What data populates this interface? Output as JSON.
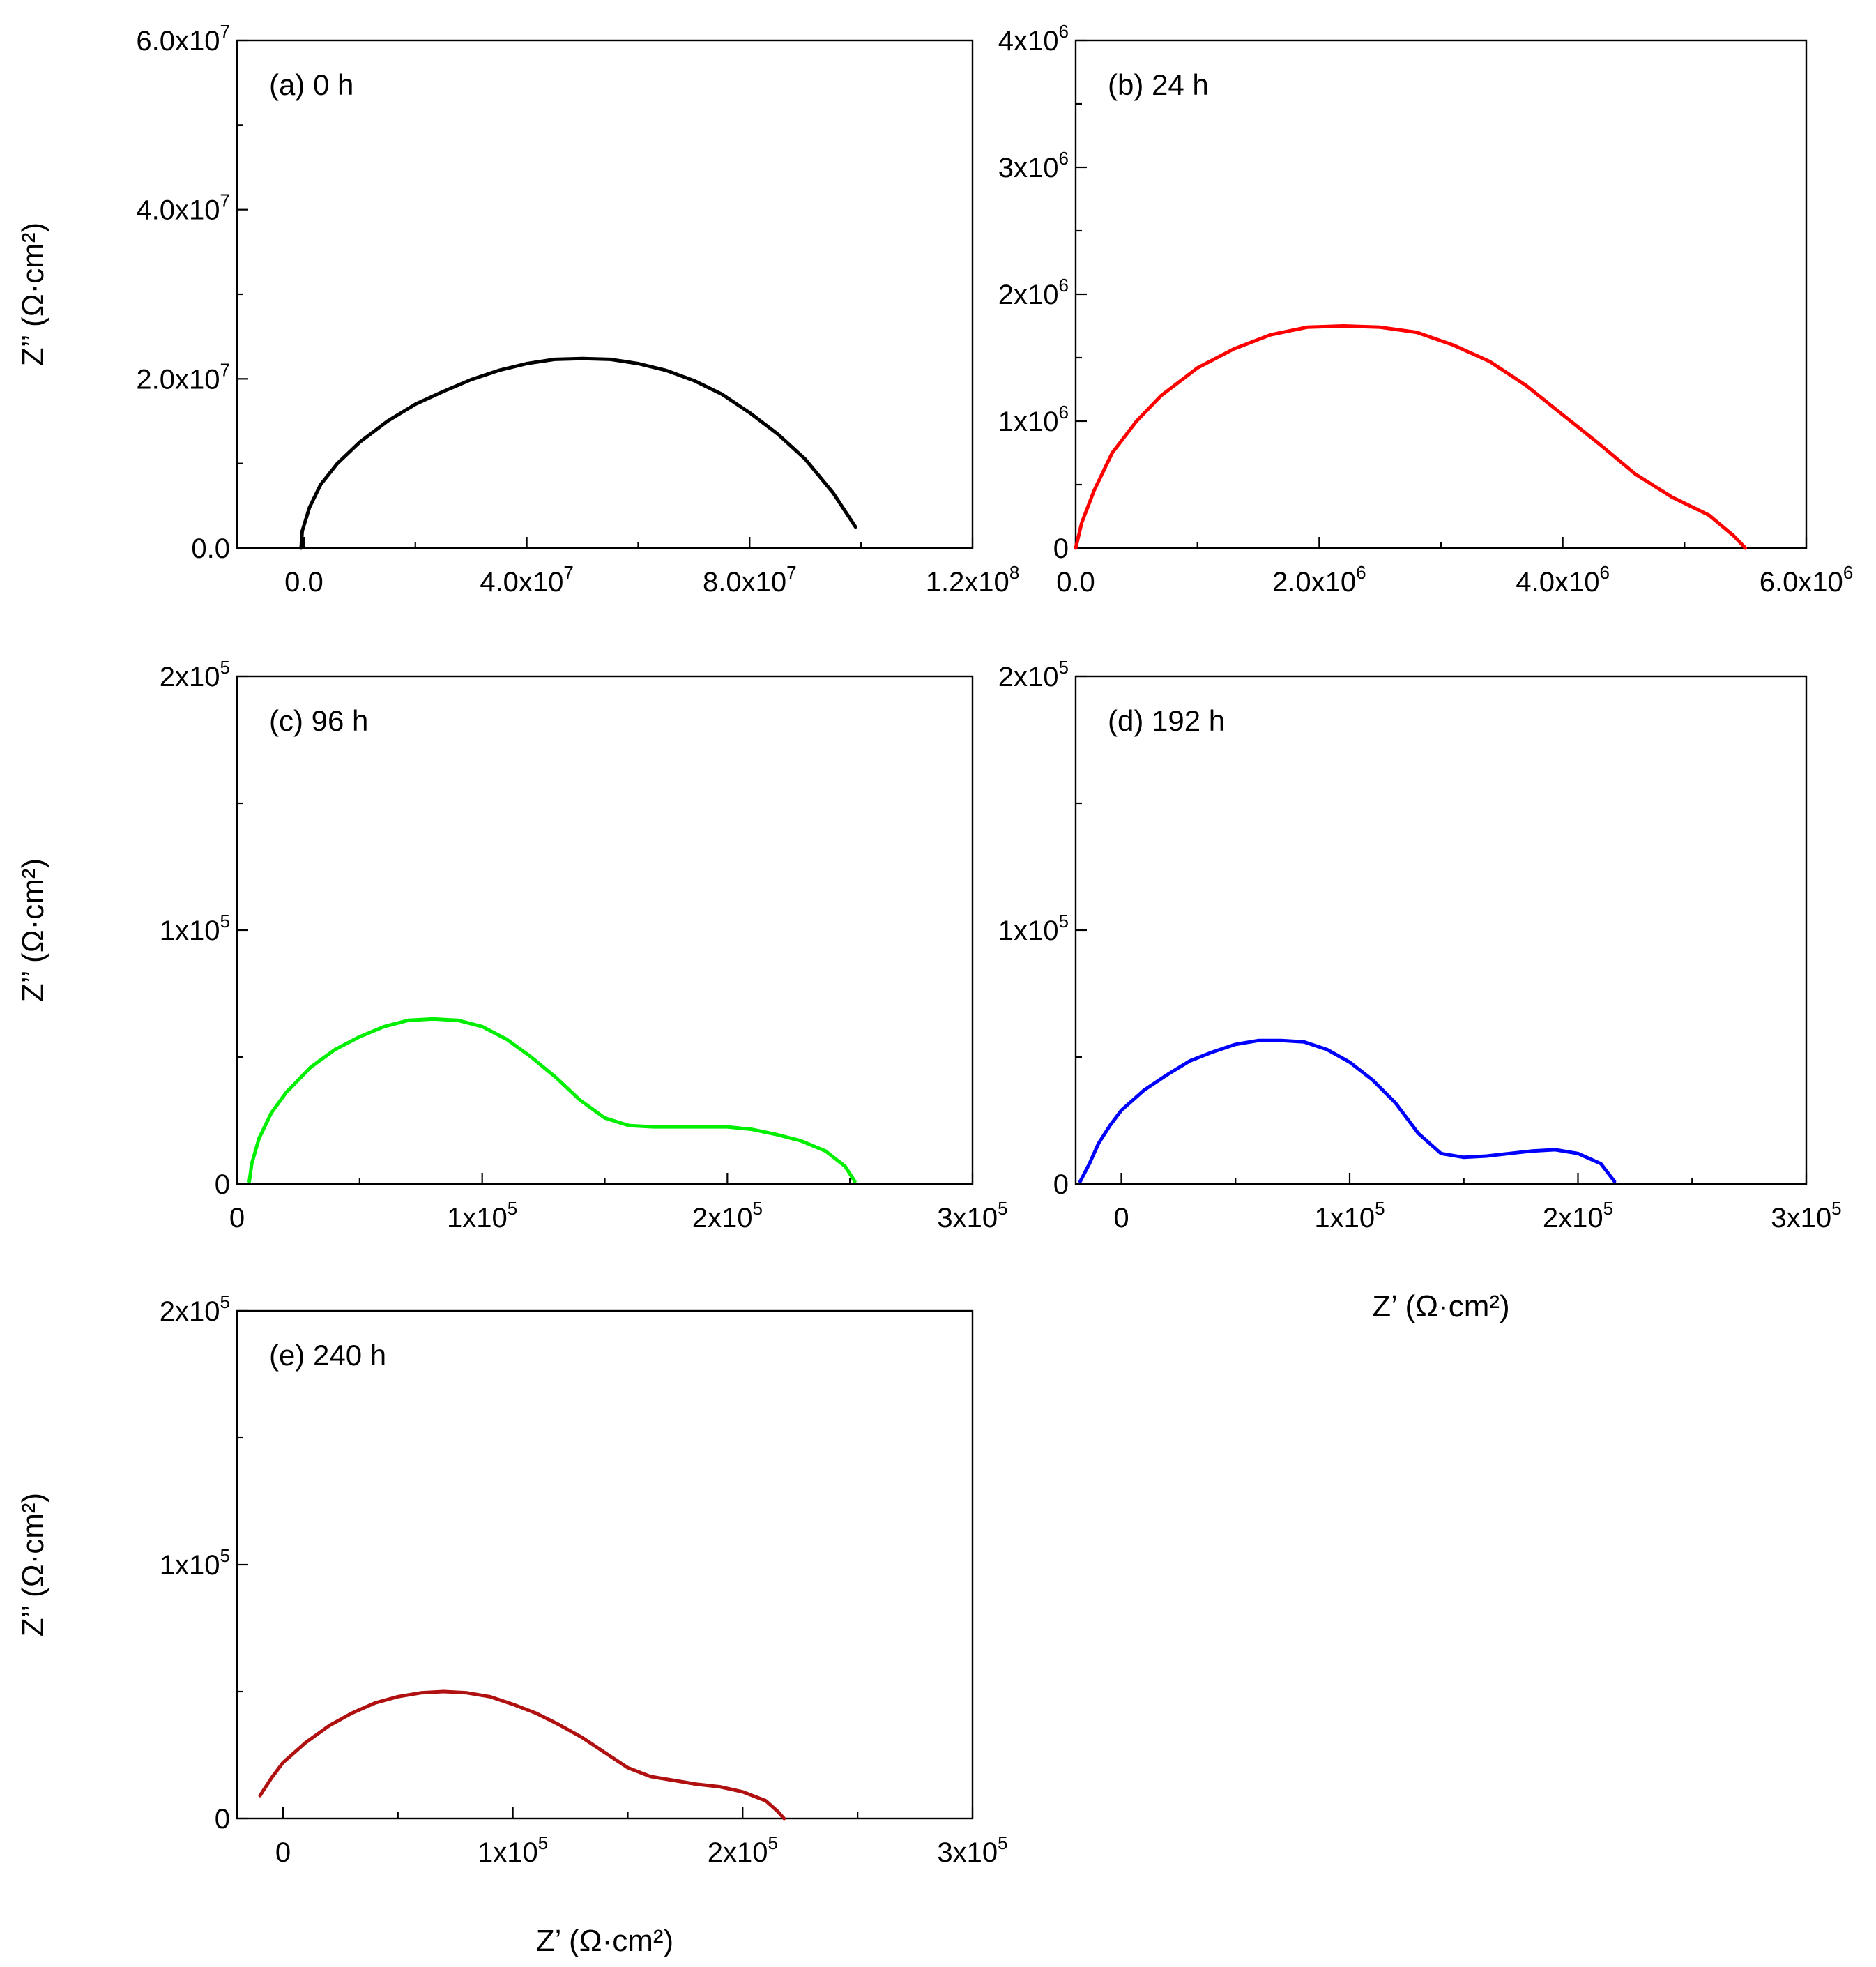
{
  "chart_data": [
    {
      "id": "a",
      "type": "line",
      "title": "(a) 0 h",
      "xlabel": "",
      "ylabel": "Z’’ (Ω·cm²)",
      "xlim": [
        -12000000.0,
        120000000.0
      ],
      "ylim": [
        0,
        60000000.0
      ],
      "x_ticks": [
        {
          "v": 0,
          "m": "0.0",
          "e": ""
        },
        {
          "v": 40000000.0,
          "m": "4.0x10",
          "e": "7"
        },
        {
          "v": 80000000.0,
          "m": "8.0x10",
          "e": "7"
        },
        {
          "v": 120000000.0,
          "m": "1.2x10",
          "e": "8"
        }
      ],
      "y_ticks": [
        {
          "v": 0,
          "m": "0.0",
          "e": ""
        },
        {
          "v": 20000000.0,
          "m": "2.0x10",
          "e": "7"
        },
        {
          "v": 40000000.0,
          "m": "4.0x10",
          "e": "7"
        },
        {
          "v": 60000000.0,
          "m": "6.0x10",
          "e": "7"
        }
      ],
      "color": "#000000",
      "series": [
        {
          "name": "0 h",
          "x": [
            -500000.0,
            -300000.0,
            1000000.0,
            3000000.0,
            6000000.0,
            10000000.0,
            15000000.0,
            20000000.0,
            25000000.0,
            30000000.0,
            35000000.0,
            40000000.0,
            45000000.0,
            50000000.0,
            55000000.0,
            60000000.0,
            65000000.0,
            70000000.0,
            75000000.0,
            80000000.0,
            85000000.0,
            90000000.0,
            95000000.0,
            99000000.0
          ],
          "y": [
            0,
            2000000.0,
            4800000.0,
            7500000.0,
            10000000.0,
            12500000.0,
            15000000.0,
            17000000.0,
            18500000.0,
            19900000.0,
            21000000.0,
            21800000.0,
            22300000.0,
            22400000.0,
            22300000.0,
            21800000.0,
            21000000.0,
            19800000.0,
            18200000.0,
            16000000.0,
            13500000.0,
            10500000.0,
            6500000.0,
            2500000.0
          ]
        }
      ]
    },
    {
      "id": "b",
      "type": "line",
      "title": "(b) 24 h",
      "xlabel": "",
      "ylabel": "",
      "xlim": [
        0,
        6000000.0
      ],
      "ylim": [
        0,
        4000000.0
      ],
      "x_ticks": [
        {
          "v": 0,
          "m": "0.0",
          "e": ""
        },
        {
          "v": 2000000.0,
          "m": "2.0x10",
          "e": "6"
        },
        {
          "v": 4000000.0,
          "m": "4.0x10",
          "e": "6"
        },
        {
          "v": 6000000.0,
          "m": "6.0x10",
          "e": "6"
        }
      ],
      "y_ticks": [
        {
          "v": 0,
          "m": "0",
          "e": ""
        },
        {
          "v": 1000000.0,
          "m": "1x10",
          "e": "6"
        },
        {
          "v": 2000000.0,
          "m": "2x10",
          "e": "6"
        },
        {
          "v": 3000000.0,
          "m": "3x10",
          "e": "6"
        },
        {
          "v": 4000000.0,
          "m": "4x10",
          "e": "6"
        }
      ],
      "color": "#ff0000",
      "series": [
        {
          "name": "24 h",
          "x": [
            0,
            50000.0,
            150000.0,
            300000.0,
            500000.0,
            700000.0,
            1000000.0,
            1300000.0,
            1600000.0,
            1900000.0,
            2200000.0,
            2500000.0,
            2800000.0,
            3100000.0,
            3400000.0,
            3700000.0,
            4000000.0,
            4300000.0,
            4600000.0,
            4900000.0,
            5200000.0,
            5400000.0,
            5500000.0
          ],
          "y": [
            0,
            200000.0,
            450000.0,
            750000.0,
            1000000.0,
            1200000.0,
            1420000.0,
            1570000.0,
            1680000.0,
            1740000.0,
            1750000.0,
            1740000.0,
            1700000.0,
            1600000.0,
            1470000.0,
            1280000.0,
            1050000.0,
            820000.0,
            580000.0,
            400000.0,
            260000.0,
            100000.0,
            0
          ]
        }
      ]
    },
    {
      "id": "c",
      "type": "line",
      "title": "(c) 96 h",
      "xlabel": "",
      "ylabel": "Z’’ (Ω·cm²)",
      "xlim": [
        0,
        300000.0
      ],
      "ylim": [
        0,
        200000.0
      ],
      "x_ticks": [
        {
          "v": 0,
          "m": "0",
          "e": ""
        },
        {
          "v": 100000.0,
          "m": "1x10",
          "e": "5"
        },
        {
          "v": 200000.0,
          "m": "2x10",
          "e": "5"
        },
        {
          "v": 300000.0,
          "m": "3x10",
          "e": "5"
        }
      ],
      "y_ticks": [
        {
          "v": 0,
          "m": "0",
          "e": ""
        },
        {
          "v": 100000.0,
          "m": "1x10",
          "e": "5"
        },
        {
          "v": 200000.0,
          "m": "2x10",
          "e": "5"
        }
      ],
      "color": "#00ee00",
      "series": [
        {
          "name": "96 h",
          "x": [
            5000,
            6000,
            9000,
            14000,
            20000,
            30000,
            40000,
            50000,
            60000,
            70000,
            80000,
            90000,
            100000,
            110000,
            120000,
            130000,
            140000,
            150000,
            160000,
            170000,
            180000,
            190000,
            200000,
            210000,
            220000,
            230000,
            240000,
            248000,
            252000
          ],
          "y": [
            1000,
            8000,
            18000,
            28000,
            36000,
            46000,
            53000,
            58000,
            62000,
            64500,
            65000,
            64500,
            62000,
            57000,
            50000,
            42000,
            33000,
            26000,
            23000,
            22500,
            22500,
            22500,
            22500,
            21500,
            19500,
            17000,
            13000,
            7000,
            1000
          ]
        }
      ]
    },
    {
      "id": "d",
      "type": "line",
      "title": "(d) 192 h",
      "xlabel": "Z’ (Ω·cm²)",
      "ylabel": "",
      "xlim": [
        -20000,
        300000.0
      ],
      "ylim": [
        0,
        200000.0
      ],
      "x_ticks": [
        {
          "v": 0,
          "m": "0",
          "e": ""
        },
        {
          "v": 100000.0,
          "m": "1x10",
          "e": "5"
        },
        {
          "v": 200000.0,
          "m": "2x10",
          "e": "5"
        },
        {
          "v": 300000.0,
          "m": "3x10",
          "e": "5"
        }
      ],
      "y_ticks": [
        {
          "v": 0,
          "m": "0",
          "e": ""
        },
        {
          "v": 100000.0,
          "m": "1x10",
          "e": "5"
        },
        {
          "v": 200000.0,
          "m": "2x10",
          "e": "5"
        }
      ],
      "color": "#0000ff",
      "series": [
        {
          "name": "192 h",
          "x": [
            -18000,
            -14000,
            -10000,
            -5000,
            0,
            10000,
            20000,
            30000,
            40000,
            50000,
            60000,
            70000,
            80000,
            90000,
            100000,
            110000,
            120000,
            130000,
            140000,
            150000,
            160000,
            170000,
            180000,
            190000,
            200000,
            210000,
            216000
          ],
          "y": [
            1000,
            8000,
            16000,
            23000,
            29000,
            37000,
            43000,
            48500,
            52000,
            55000,
            56500,
            56500,
            56000,
            53000,
            48000,
            41000,
            32000,
            20000,
            12000,
            10500,
            11000,
            12000,
            13000,
            13500,
            12000,
            8000,
            1000
          ]
        }
      ]
    },
    {
      "id": "e",
      "type": "line",
      "title": "(e) 240 h",
      "xlabel": "Z’ (Ω·cm²)",
      "ylabel": "Z’’ (Ω·cm²)",
      "xlim": [
        -20000,
        300000.0
      ],
      "ylim": [
        0,
        200000.0
      ],
      "x_ticks": [
        {
          "v": 0,
          "m": "0",
          "e": ""
        },
        {
          "v": 100000.0,
          "m": "1x10",
          "e": "5"
        },
        {
          "v": 200000.0,
          "m": "2x10",
          "e": "5"
        },
        {
          "v": 300000.0,
          "m": "3x10",
          "e": "5"
        }
      ],
      "y_ticks": [
        {
          "v": 0,
          "m": "0",
          "e": ""
        },
        {
          "v": 100000.0,
          "m": "1x10",
          "e": "5"
        },
        {
          "v": 200000.0,
          "m": "2x10",
          "e": "5"
        }
      ],
      "color": "#b01010",
      "series": [
        {
          "name": "240 h",
          "x": [
            -10000,
            -5000,
            0,
            10000,
            20000,
            30000,
            40000,
            50000,
            60000,
            70000,
            80000,
            90000,
            100000,
            110000,
            120000,
            130000,
            140000,
            150000,
            160000,
            170000,
            180000,
            190000,
            200000,
            210000,
            215000,
            218000
          ],
          "y": [
            9000,
            16000,
            22000,
            30000,
            36500,
            41500,
            45500,
            48000,
            49500,
            50000,
            49500,
            48000,
            45000,
            41500,
            37000,
            32000,
            26000,
            20000,
            16500,
            15000,
            13500,
            12500,
            10500,
            7000,
            3000,
            0
          ]
        }
      ]
    }
  ]
}
